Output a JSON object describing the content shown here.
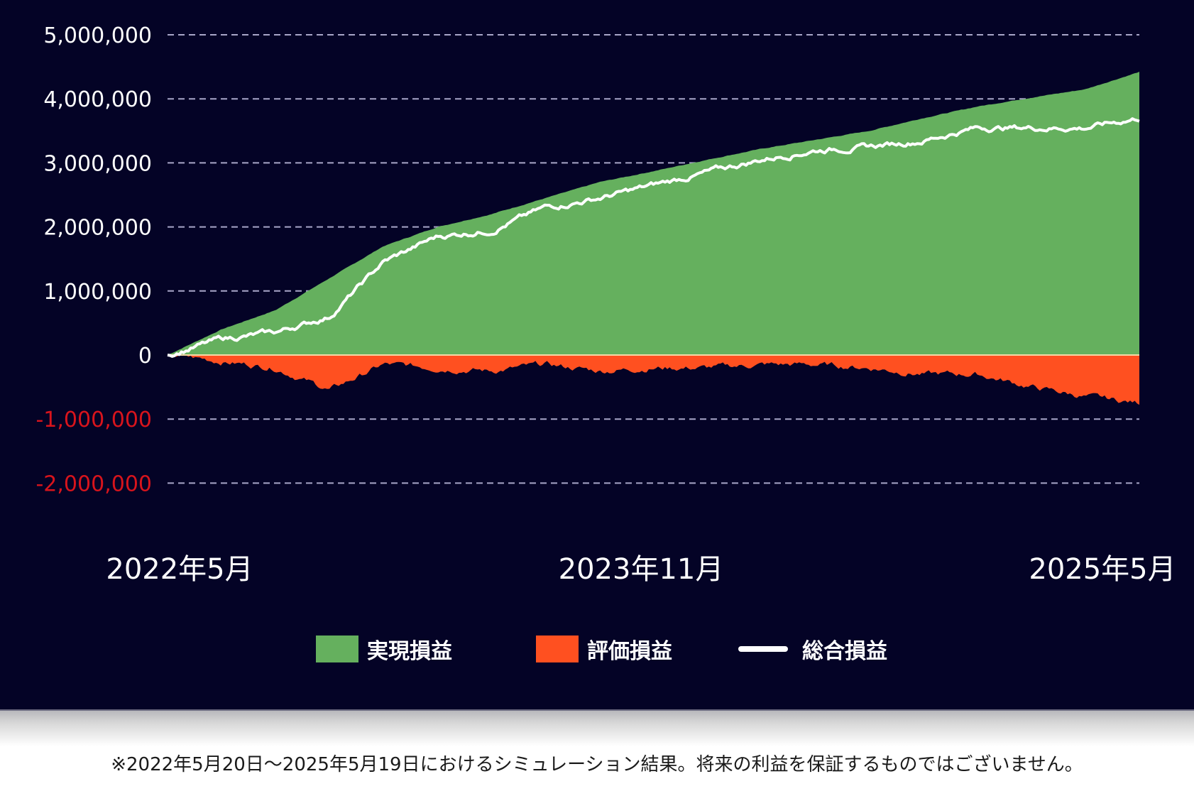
{
  "chart_data": {
    "type": "area",
    "title": "",
    "xlabel": "",
    "ylabel": "",
    "ylim": [
      -2000000,
      5000000
    ],
    "yticks": [
      5000000,
      4000000,
      3000000,
      2000000,
      1000000,
      0,
      -1000000,
      -2000000
    ],
    "ytick_labels": [
      "5,000,000",
      "4,000,000",
      "3,000,000",
      "2,000,000",
      "1,000,000",
      "0",
      "-1,000,000",
      "-2,000,000"
    ],
    "xtick_labels": [
      "2022年5月",
      "2023年11月",
      "2025年5月"
    ],
    "grid": "horizontal dashed",
    "legend_position": "bottom",
    "x": [
      "2022-05",
      "2022-07",
      "2022-09",
      "2022-11",
      "2023-01",
      "2023-03",
      "2023-05",
      "2023-07",
      "2023-09",
      "2023-11",
      "2024-01",
      "2024-03",
      "2024-05",
      "2024-07",
      "2024-09",
      "2024-11",
      "2025-01",
      "2025-03",
      "2025-05"
    ],
    "series": [
      {
        "name": "実現損益",
        "type": "area",
        "color": "#65b05e",
        "values": [
          0,
          400000,
          700000,
          1200000,
          1700000,
          2000000,
          2200000,
          2450000,
          2700000,
          2870000,
          3050000,
          3220000,
          3360000,
          3500000,
          3700000,
          3880000,
          4020000,
          4150000,
          4420000
        ]
      },
      {
        "name": "評価損益",
        "type": "area",
        "color": "#ff5020",
        "values": [
          0,
          -100000,
          -200000,
          -550000,
          -150000,
          -200000,
          -250000,
          -150000,
          -250000,
          -200000,
          -200000,
          -150000,
          -150000,
          -200000,
          -300000,
          -300000,
          -500000,
          -650000,
          -750000
        ]
      },
      {
        "name": "総合損益",
        "type": "line",
        "color": "#ffffff",
        "values": [
          0,
          250000,
          350000,
          600000,
          1450000,
          1850000,
          1950000,
          2300000,
          2450000,
          2650000,
          2850000,
          3050000,
          3200000,
          3250000,
          3350000,
          3550000,
          3550000,
          3550000,
          3700000
        ]
      }
    ]
  },
  "legend": {
    "items": [
      {
        "label": "実現損益",
        "color": "#65b05e",
        "kind": "box"
      },
      {
        "label": "評価損益",
        "color": "#ff5020",
        "kind": "box"
      },
      {
        "label": "総合損益",
        "color": "#ffffff",
        "kind": "line"
      }
    ]
  },
  "footer": {
    "note": "※2022年5月20日～2025年5月19日におけるシミュレーション結果。将来の利益を保証するものではございません。"
  },
  "colors": {
    "background": "#040326",
    "realized": "#65b05e",
    "unrealized": "#ff5020",
    "total": "#ffffff",
    "negative_tick": "#d8141c",
    "grid": "#a8a6c8"
  }
}
